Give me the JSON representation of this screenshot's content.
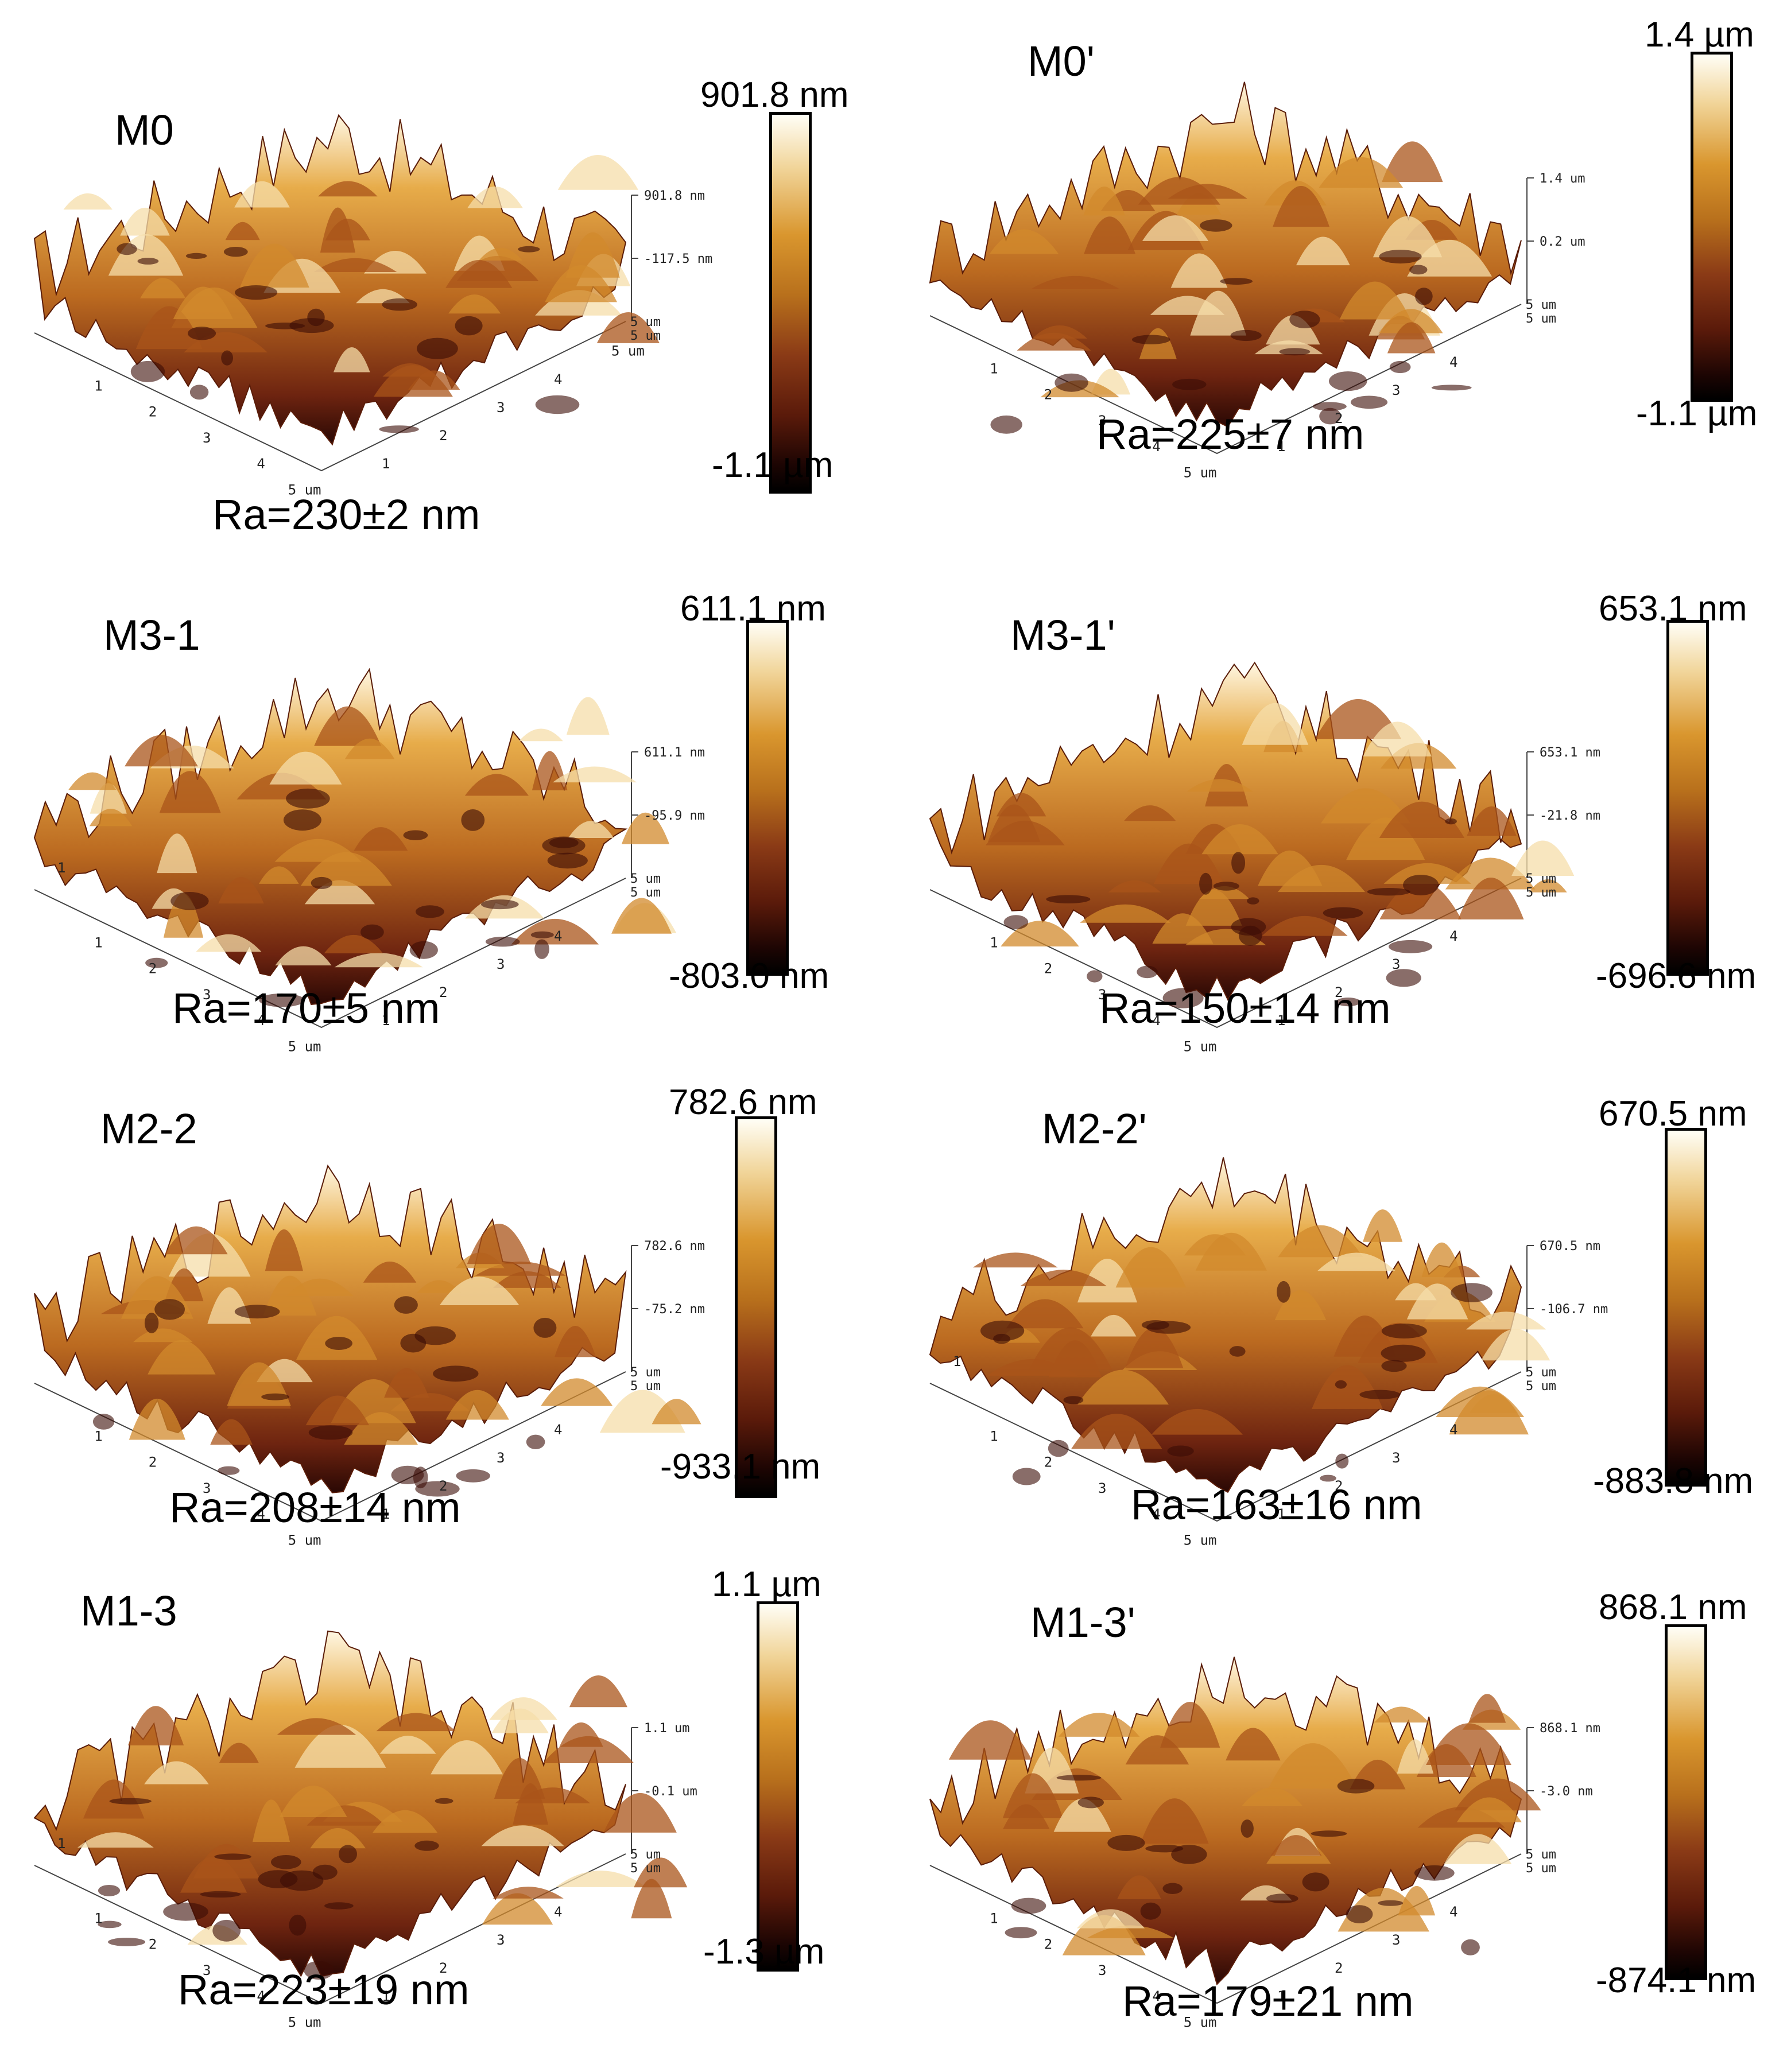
{
  "figure": {
    "panels": [
      {
        "id": "M0",
        "label": "M0",
        "ra": "Ra=230±2 nm",
        "cbar_max": "901.8 nm",
        "cbar_min": "-1.1 µm",
        "zticks": [
          "901.8 nm",
          "-117.5 nm"
        ],
        "xticks": [
          "1",
          "2",
          "3",
          "4",
          "5 um"
        ],
        "yticks": [
          "1",
          "2",
          "3",
          "4",
          "5 um"
        ],
        "corner": [
          "5 um",
          "5 um"
        ],
        "extra_tick": ""
      },
      {
        "id": "M0p",
        "label": "M0'",
        "ra": "Ra=225±7 nm",
        "cbar_max": "1.4 µm",
        "cbar_min": "-1.1 µm",
        "zticks": [
          "1.4 um",
          "0.2 um"
        ],
        "xticks": [
          "1",
          "2",
          "3",
          "4",
          "5 um"
        ],
        "yticks": [
          "1",
          "2",
          "3",
          "4",
          ""
        ],
        "corner": [
          "5 um",
          "5 um"
        ],
        "extra_tick": ""
      },
      {
        "id": "M3-1",
        "label": "M3-1",
        "ra": "Ra=170±5 nm",
        "cbar_max": "611.1 nm",
        "cbar_min": "-803.0 nm",
        "zticks": [
          "611.1 nm",
          "-95.9 nm"
        ],
        "xticks": [
          "1",
          "2",
          "3",
          "4",
          "5 um"
        ],
        "yticks": [
          "1",
          "2",
          "3",
          "4",
          ""
        ],
        "corner": [
          "5 um",
          "5 um"
        ],
        "extra_tick": "1"
      },
      {
        "id": "M3-1p",
        "label": "M3-1'",
        "ra": "Ra=150±14 nm",
        "cbar_max": "653.1 nm",
        "cbar_min": "-696.6 nm",
        "zticks": [
          "653.1 nm",
          "-21.8 nm"
        ],
        "xticks": [
          "1",
          "2",
          "3",
          "4",
          "5 um"
        ],
        "yticks": [
          "1",
          "2",
          "3",
          "4",
          ""
        ],
        "corner": [
          "5 um",
          "5 um"
        ],
        "extra_tick": ""
      },
      {
        "id": "M2-2",
        "label": "M2-2",
        "ra": "Ra=208±14 nm",
        "cbar_max": "782.6 nm",
        "cbar_min": "-933.1 nm",
        "zticks": [
          "782.6 nm",
          "-75.2 nm"
        ],
        "xticks": [
          "1",
          "2",
          "3",
          "4",
          "5 um"
        ],
        "yticks": [
          "1",
          "2",
          "3",
          "4",
          ""
        ],
        "corner": [
          "5 um",
          "5 um"
        ],
        "extra_tick": ""
      },
      {
        "id": "M2-2p",
        "label": "M2-2'",
        "ra": "Ra=163±16 nm",
        "cbar_max": "670.5 nm",
        "cbar_min": "-883.8 nm",
        "zticks": [
          "670.5 nm",
          "-106.7 nm"
        ],
        "xticks": [
          "1",
          "2",
          "3",
          "4",
          "5 um"
        ],
        "yticks": [
          "1",
          "2",
          "3",
          "4",
          ""
        ],
        "corner": [
          "5 um",
          "5 um"
        ],
        "extra_tick": "1"
      },
      {
        "id": "M1-3",
        "label": "M1-3",
        "ra": "Ra=223±19 nm",
        "cbar_max": "1.1 µm",
        "cbar_min": "-1.3 µm",
        "zticks": [
          "1.1 um",
          "-0.1 um"
        ],
        "xticks": [
          "1",
          "2",
          "3",
          "4",
          "5 um"
        ],
        "yticks": [
          "1",
          "2",
          "3",
          "4",
          ""
        ],
        "corner": [
          "5 um",
          "5 um"
        ],
        "extra_tick": "1"
      },
      {
        "id": "M1-3p",
        "label": "M1-3'",
        "ra": "Ra=179±21 nm",
        "cbar_max": "868.1 nm",
        "cbar_min": "-874.1 nm",
        "zticks": [
          "868.1 nm",
          "-3.0 nm"
        ],
        "xticks": [
          "1",
          "2",
          "3",
          "4",
          "5 um"
        ],
        "yticks": [
          "1",
          "2",
          "3",
          "4",
          ""
        ],
        "corner": [
          "5 um",
          "5 um"
        ],
        "extra_tick": ""
      }
    ]
  }
}
